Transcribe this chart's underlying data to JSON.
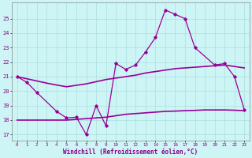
{
  "x": [
    0,
    1,
    2,
    3,
    4,
    5,
    6,
    7,
    8,
    9,
    10,
    11,
    12,
    13,
    14,
    15,
    16,
    17,
    18,
    19,
    20,
    21,
    22,
    23
  ],
  "line_main": [
    21.0,
    20.6,
    19.9,
    null,
    18.6,
    18.15,
    18.2,
    17.0,
    19.0,
    17.6,
    21.9,
    21.5,
    21.8,
    22.7,
    23.7,
    25.6,
    25.3,
    25.0,
    23.0,
    null,
    21.8,
    21.9,
    21.0,
    18.7
  ],
  "line_smooth_top": [
    21.0,
    20.85,
    20.7,
    20.55,
    20.42,
    20.3,
    20.4,
    20.5,
    20.65,
    20.8,
    20.9,
    21.0,
    21.1,
    21.25,
    21.35,
    21.45,
    21.55,
    21.6,
    21.65,
    21.7,
    21.75,
    21.8,
    21.7,
    21.6
  ],
  "line_smooth_bot": [
    18.0,
    18.0,
    18.0,
    18.0,
    18.0,
    18.0,
    18.05,
    18.1,
    18.15,
    18.2,
    18.3,
    18.4,
    18.45,
    18.5,
    18.55,
    18.6,
    18.62,
    18.65,
    18.67,
    18.7,
    18.7,
    18.7,
    18.68,
    18.65
  ],
  "color_main": "#990099",
  "bg_color": "#cef5f5",
  "grid_color": "#aadddd",
  "xlabel": "Windchill (Refroidissement éolien,°C)",
  "ylim": [
    16.6,
    26.1
  ],
  "xlim": [
    -0.5,
    23.5
  ],
  "yticks": [
    17,
    18,
    19,
    20,
    21,
    22,
    23,
    24,
    25
  ],
  "xticks": [
    0,
    1,
    2,
    3,
    4,
    5,
    6,
    7,
    8,
    9,
    10,
    11,
    12,
    13,
    14,
    15,
    16,
    17,
    18,
    19,
    20,
    21,
    22,
    23
  ],
  "xtick_labels": [
    "0",
    "1",
    "2",
    "3",
    "4",
    "5",
    "6",
    "7",
    "8",
    "9",
    "10",
    "11",
    "12",
    "13",
    "14",
    "15",
    "16",
    "17",
    "18",
    "19",
    "20",
    "21",
    "22",
    "23"
  ]
}
